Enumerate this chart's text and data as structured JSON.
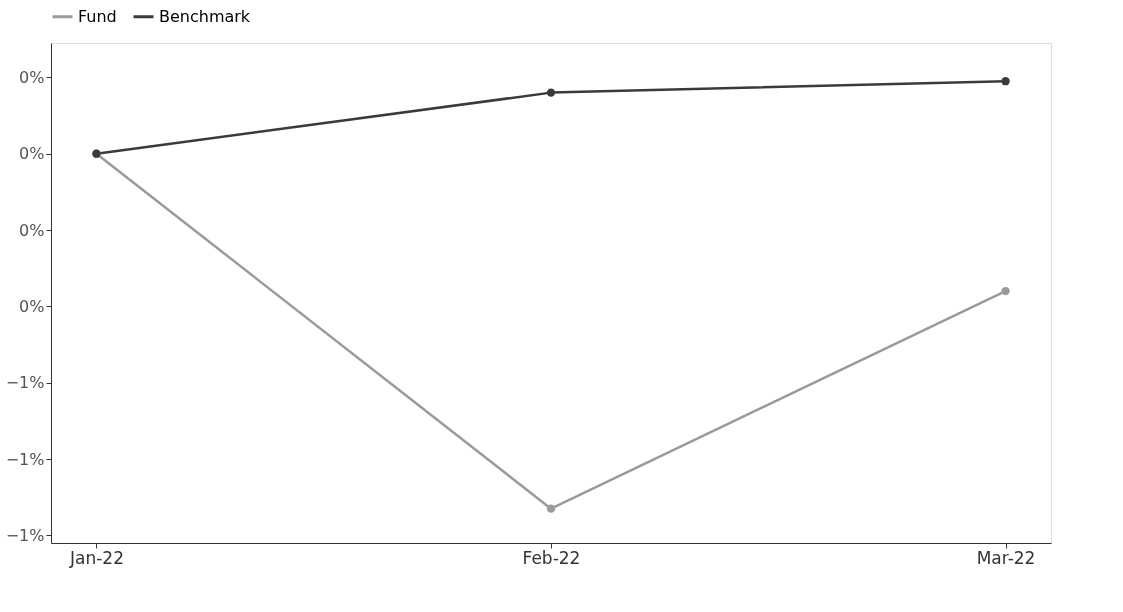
{
  "chart_data": {
    "type": "line",
    "categories": [
      "Jan-22",
      "Feb-22",
      "Mar-22"
    ],
    "series": [
      {
        "name": "Fund",
        "color": "#9a9a9a",
        "values": [
          0,
          -0.93,
          -0.36
        ]
      },
      {
        "name": "Benchmark",
        "color": "#3a3a3a",
        "values": [
          0,
          0.16,
          0.19
        ]
      }
    ],
    "ylim": [
      -1.02,
      0.29
    ],
    "yticks": [
      {
        "value": 0.2,
        "label": "0%"
      },
      {
        "value": 0,
        "label": "0%"
      },
      {
        "value": -0.2,
        "label": "0%"
      },
      {
        "value": -0.4,
        "label": "0%"
      },
      {
        "value": -0.6,
        "label": "−1%"
      },
      {
        "value": -0.8,
        "label": "−1%"
      },
      {
        "value": -1.0,
        "label": "−1%"
      }
    ],
    "grid": false,
    "legend": "top",
    "marker": "circle",
    "line_style": "solid"
  }
}
